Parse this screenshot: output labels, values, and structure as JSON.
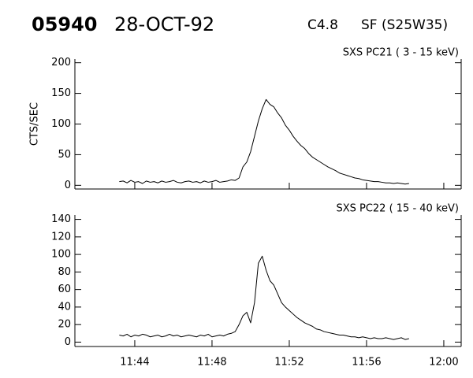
{
  "header": {
    "number": "05940",
    "date": "28-OCT-92",
    "class": "C4.8",
    "location": "SF (S25W35)"
  },
  "chart_data": [
    {
      "type": "line",
      "title": "SXS PC21  (  3 - 15 keV)",
      "y_label": "CTS/SEC",
      "color": "#000000",
      "xlim": [
        700.9,
        720.9
      ],
      "xticks": [
        704,
        708,
        712,
        716,
        720
      ],
      "ylim": [
        -6,
        206
      ],
      "yticks": [
        0,
        50,
        100,
        150,
        200
      ],
      "x": [
        703.2,
        703.4,
        703.6,
        703.8,
        704.0,
        704.2,
        704.4,
        704.6,
        704.8,
        705.0,
        705.2,
        705.4,
        705.6,
        705.8,
        706.0,
        706.2,
        706.4,
        706.6,
        706.8,
        707.0,
        707.2,
        707.4,
        707.6,
        707.8,
        708.0,
        708.2,
        708.4,
        708.6,
        708.8,
        709.0,
        709.2,
        709.4,
        709.6,
        709.8,
        710.0,
        710.2,
        710.4,
        710.6,
        710.8,
        711.0,
        711.2,
        711.4,
        711.6,
        711.8,
        712.0,
        712.2,
        712.4,
        712.6,
        712.8,
        713.0,
        713.2,
        713.4,
        713.6,
        713.8,
        714.0,
        714.2,
        714.4,
        714.6,
        714.8,
        715.0,
        715.2,
        715.4,
        715.6,
        715.8,
        716.0,
        716.2,
        716.4,
        716.6,
        716.8,
        717.0,
        717.2,
        717.4,
        717.6,
        717.8,
        718.0,
        718.2
      ],
      "values": [
        6,
        7,
        4,
        8,
        5,
        6,
        3,
        7,
        5,
        6,
        4,
        7,
        5,
        6,
        8,
        5,
        4,
        6,
        7,
        5,
        6,
        4,
        7,
        5,
        6,
        8,
        5,
        6,
        7,
        9,
        8,
        12,
        30,
        38,
        55,
        80,
        105,
        125,
        140,
        132,
        128,
        118,
        110,
        98,
        90,
        80,
        72,
        65,
        60,
        52,
        46,
        42,
        38,
        34,
        30,
        27,
        24,
        20,
        18,
        16,
        14,
        12,
        11,
        9,
        8,
        7,
        6,
        6,
        5,
        4,
        4,
        3,
        4,
        3,
        2,
        3
      ]
    },
    {
      "type": "line",
      "title": "SXS PC22  ( 15 - 40 keV)",
      "color": "#000000",
      "xlim": [
        700.9,
        720.9
      ],
      "xticks": [
        {
          "value": 704,
          "label": "11:44"
        },
        {
          "value": 708,
          "label": "11:48"
        },
        {
          "value": 712,
          "label": "11:52"
        },
        {
          "value": 716,
          "label": "11:56"
        },
        {
          "value": 720,
          "label": "12:00"
        }
      ],
      "ylim": [
        -5,
        145
      ],
      "yticks": [
        0,
        20,
        40,
        60,
        80,
        100,
        120,
        140
      ],
      "x": [
        703.2,
        703.4,
        703.6,
        703.8,
        704.0,
        704.2,
        704.4,
        704.6,
        704.8,
        705.0,
        705.2,
        705.4,
        705.6,
        705.8,
        706.0,
        706.2,
        706.4,
        706.6,
        706.8,
        707.0,
        707.2,
        707.4,
        707.6,
        707.8,
        708.0,
        708.2,
        708.4,
        708.6,
        708.8,
        709.0,
        709.2,
        709.4,
        709.6,
        709.8,
        710.0,
        710.2,
        710.4,
        710.6,
        710.8,
        711.0,
        711.2,
        711.4,
        711.6,
        711.8,
        712.0,
        712.2,
        712.4,
        712.6,
        712.8,
        713.0,
        713.2,
        713.4,
        713.6,
        713.8,
        714.0,
        714.2,
        714.4,
        714.6,
        714.8,
        715.0,
        715.2,
        715.4,
        715.6,
        715.8,
        716.0,
        716.2,
        716.4,
        716.6,
        716.8,
        717.0,
        717.2,
        717.4,
        717.6,
        717.8,
        718.0,
        718.2
      ],
      "values": [
        8,
        7,
        9,
        6,
        8,
        7,
        9,
        8,
        6,
        7,
        8,
        6,
        7,
        9,
        7,
        8,
        6,
        7,
        8,
        7,
        6,
        8,
        7,
        9,
        6,
        7,
        8,
        7,
        9,
        10,
        12,
        20,
        30,
        34,
        22,
        45,
        90,
        98,
        82,
        70,
        65,
        55,
        45,
        40,
        36,
        32,
        28,
        25,
        22,
        20,
        18,
        15,
        14,
        12,
        11,
        10,
        9,
        8,
        8,
        7,
        6,
        6,
        5,
        6,
        5,
        4,
        5,
        4,
        4,
        5,
        4,
        3,
        4,
        5,
        3,
        4
      ]
    }
  ]
}
